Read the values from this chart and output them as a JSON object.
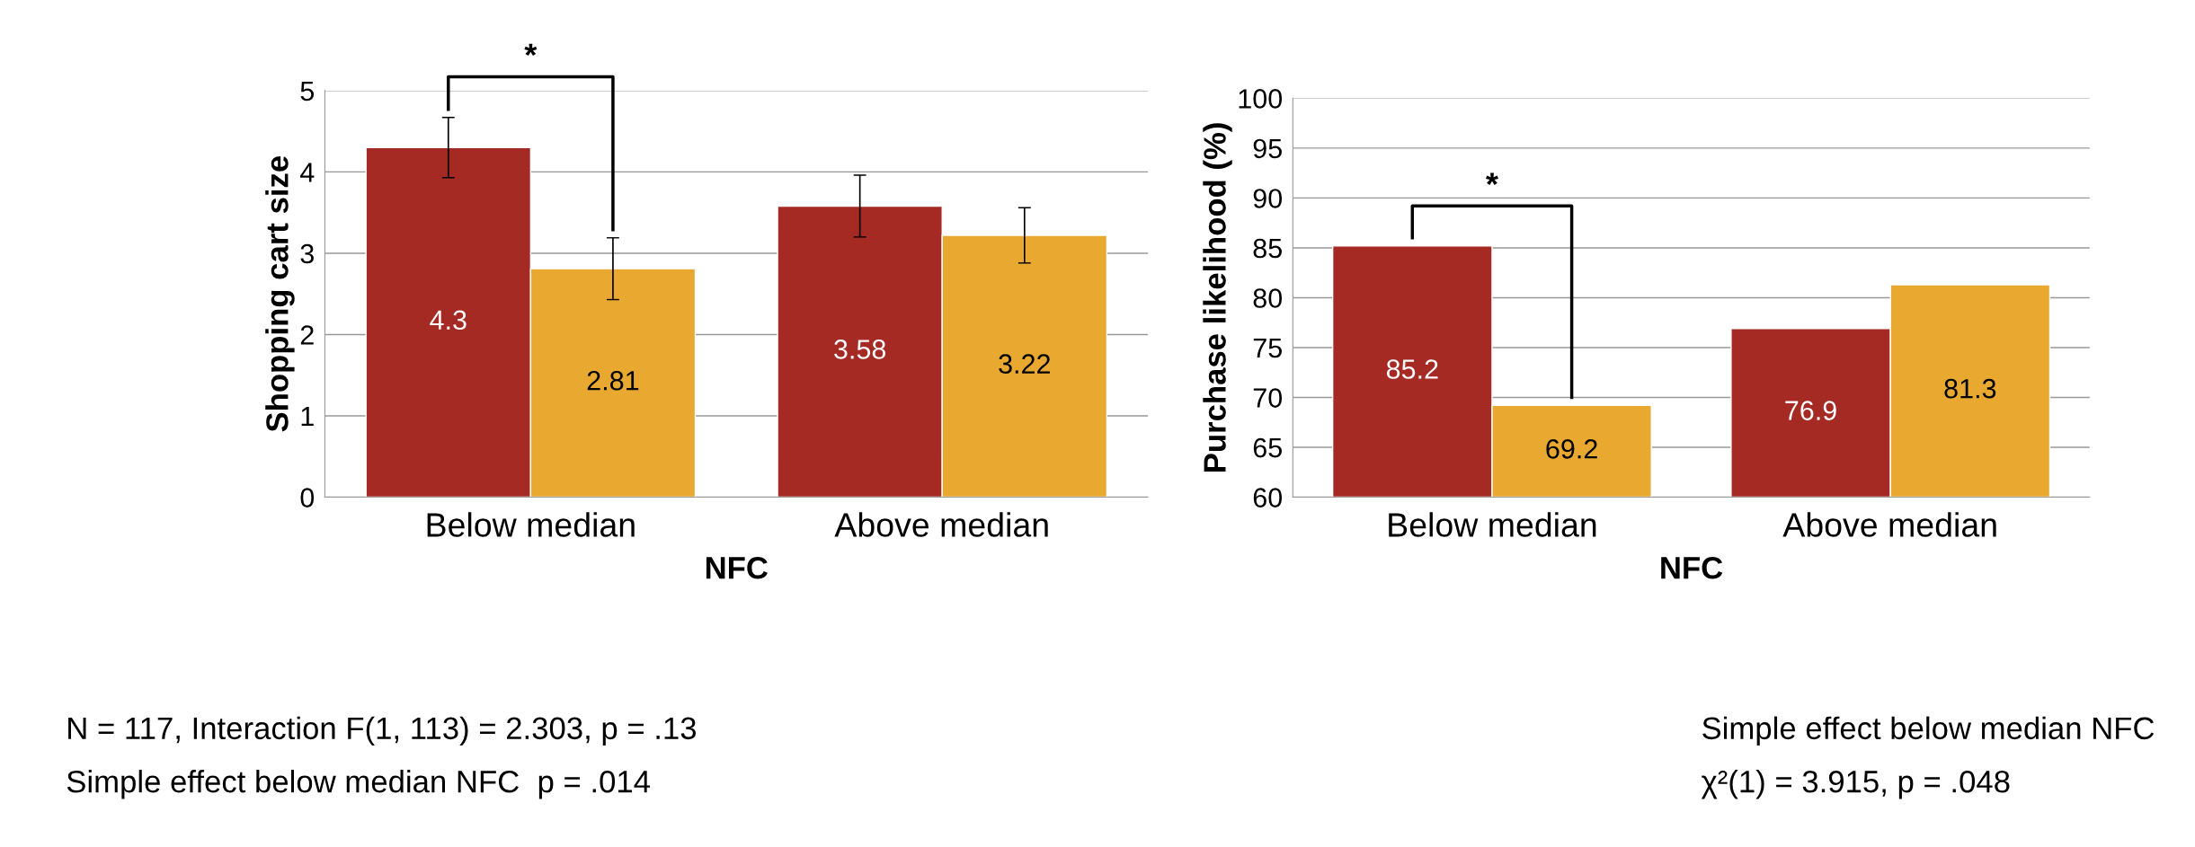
{
  "chart_data": [
    {
      "type": "bar",
      "xlabel": "NFC",
      "ylabel": "Shopping cart size",
      "categories": [
        "Below median",
        "Above median"
      ],
      "series": [
        {
          "color": "#a52a24",
          "values": [
            4.3,
            3.58
          ],
          "errors": [
            0.37,
            0.38
          ]
        },
        {
          "color": "#e9a830",
          "values": [
            2.81,
            3.22
          ],
          "errors": [
            0.38,
            0.34
          ]
        }
      ],
      "ylim": [
        0,
        5
      ],
      "yticks": [
        0,
        1,
        2,
        3,
        4,
        5
      ],
      "grid": "y",
      "legend": false,
      "data_labels": true,
      "annotations": [
        "*",
        "N = 117, Interaction F(1, 113) = 2.303, p = .13",
        "Simple effect below median NFC  p = .014"
      ]
    },
    {
      "type": "bar",
      "xlabel": "NFC",
      "ylabel": "Purchase likelihood (%)",
      "categories": [
        "Below median",
        "Above median"
      ],
      "series": [
        {
          "color": "#a52a24",
          "values": [
            85.2,
            76.9
          ]
        },
        {
          "color": "#e9a830",
          "values": [
            69.2,
            81.3
          ]
        }
      ],
      "ylim": [
        60,
        100
      ],
      "yticks": [
        60,
        65,
        70,
        75,
        80,
        85,
        90,
        95,
        100
      ],
      "grid": "y",
      "legend": false,
      "data_labels": true,
      "annotations": [
        "*",
        "Simple effect below median NFC",
        "χ²(1) = 3.915, p = .048"
      ]
    }
  ]
}
